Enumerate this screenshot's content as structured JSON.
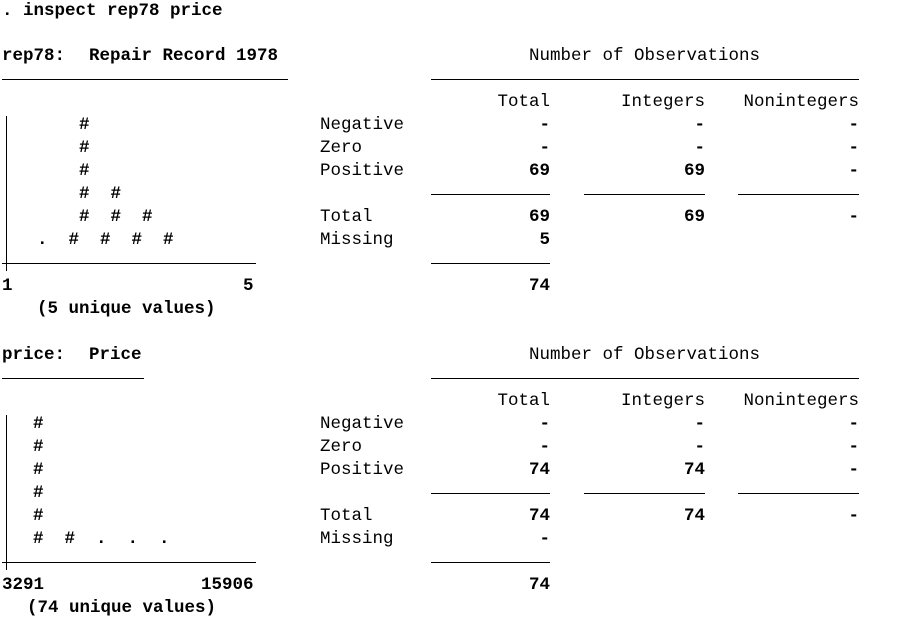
{
  "command": ". inspect rep78 price",
  "var1": {
    "name": "rep78:",
    "label": "Repair Record 1978",
    "header": "Number of Observations",
    "col_total": "Total",
    "col_integers": "Integers",
    "col_nonintegers": "Nonintegers",
    "rows": {
      "negative": {
        "label": "Negative",
        "total": "-",
        "integers": "-",
        "nonintegers": "-"
      },
      "zero": {
        "label": "Zero",
        "total": "-",
        "integers": "-",
        "nonintegers": "-"
      },
      "positive": {
        "label": "Positive",
        "total": "69",
        "integers": "69",
        "nonintegers": "-"
      },
      "total": {
        "label": "Total",
        "total": "69",
        "integers": "69",
        "nonintegers": "-"
      },
      "missing": {
        "label": "Missing",
        "total": "5"
      }
    },
    "grand_total": "74",
    "hist": {
      "rows": [
        "    #",
        "    #",
        "    #",
        "    #  #",
        "    #  #  #",
        ".  #  #  #  #"
      ],
      "axis_min": "1",
      "axis_max": "5",
      "unique": "(5 unique values)"
    }
  },
  "var2": {
    "name": "price:",
    "label": "Price",
    "header": "Number of Observations",
    "col_total": "Total",
    "col_integers": "Integers",
    "col_nonintegers": "Nonintegers",
    "rows": {
      "negative": {
        "label": "Negative",
        "total": "-",
        "integers": "-",
        "nonintegers": "-"
      },
      "zero": {
        "label": "Zero",
        "total": "-",
        "integers": "-",
        "nonintegers": "-"
      },
      "positive": {
        "label": "Positive",
        "total": "74",
        "integers": "74",
        "nonintegers": "-"
      },
      "total": {
        "label": "Total",
        "total": "74",
        "integers": "74",
        "nonintegers": "-"
      },
      "missing": {
        "label": "Missing",
        "total": "-"
      }
    },
    "grand_total": "74",
    "hist": {
      "rows": [
        "#",
        "#",
        "#",
        "#",
        "#",
        "#  #  .  .  ."
      ],
      "axis_min": "3291",
      "axis_max": "15906",
      "unique": "(74 unique values)"
    }
  }
}
